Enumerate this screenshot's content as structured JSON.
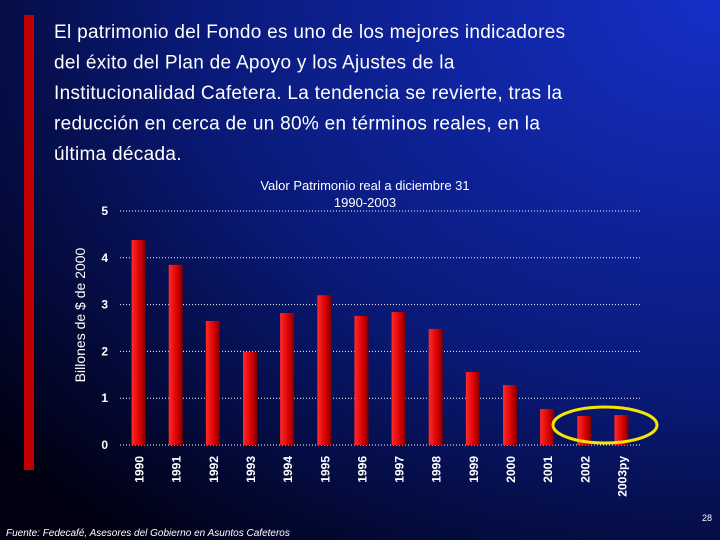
{
  "slide": {
    "text_lines": [
      "El patrimonio del Fondo es uno de los mejores indicadores",
      "del éxito del Plan de Apoyo y los Ajustes de la",
      "Institucionalidad Cafetera. La tendencia se revierte, tras la",
      "reducción en cerca de un 80% en términos reales, en la",
      "última década."
    ],
    "source": "Fuente: Fedecafé, Asesores del Gobierno en Asuntos Cafeteros",
    "page_number": "28"
  },
  "chart_data": {
    "type": "bar",
    "title": "Valor Patrimonio real a diciembre 31",
    "subtitle": "1990-2003",
    "y_label": "Billones de $ de 2000",
    "categories": [
      "1990",
      "1991",
      "1992",
      "1993",
      "1994",
      "1995",
      "1996",
      "1997",
      "1998",
      "1999",
      "2000",
      "2001",
      "2002",
      "2003py"
    ],
    "values": [
      4.38,
      3.85,
      2.65,
      1.99,
      2.82,
      3.2,
      2.76,
      2.84,
      2.48,
      1.56,
      1.28,
      0.77,
      0.62,
      0.64
    ],
    "color": "#e00000",
    "ylim": [
      0,
      5
    ],
    "yticks": [
      0,
      1,
      2,
      3,
      4,
      5
    ],
    "grid": true
  }
}
